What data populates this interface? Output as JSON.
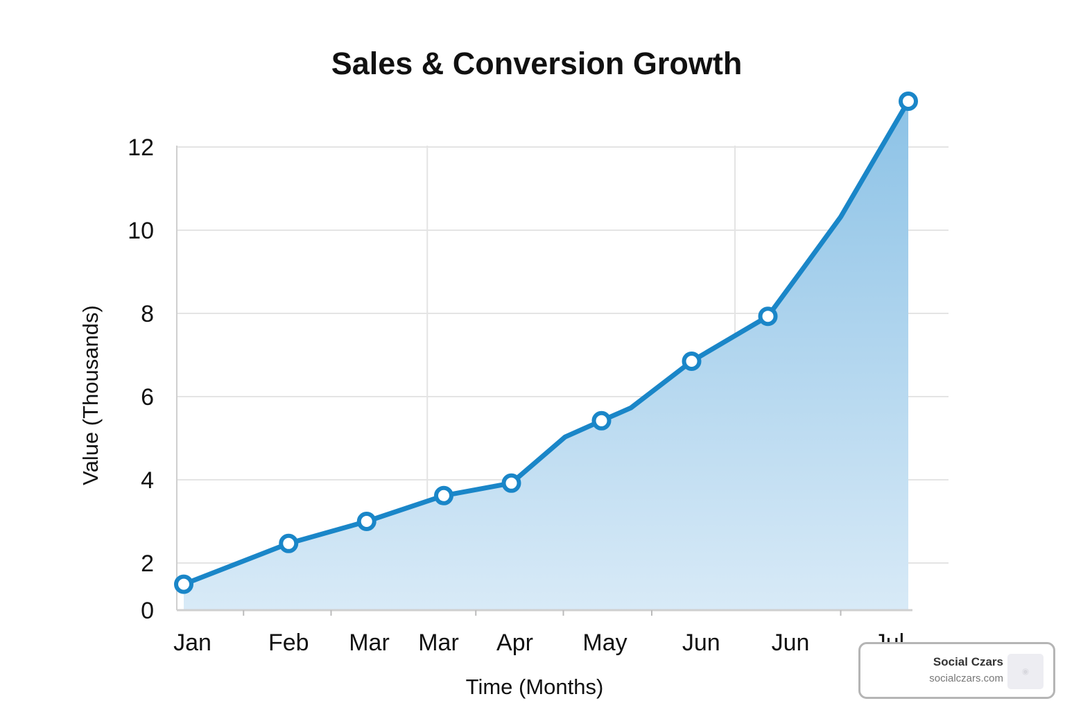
{
  "chart_data": {
    "type": "area",
    "title": "Sales & Conversion Growth",
    "xlabel": "Time (Months)",
    "ylabel": "Value (Thousands)",
    "ylim": [
      0,
      12
    ],
    "yticks": [
      0,
      2,
      4,
      6,
      8,
      10,
      12
    ],
    "grid": true,
    "x_tick_labels": [
      {
        "label": "Jan",
        "x": 0.1
      },
      {
        "label": "Feb",
        "x": 1.21
      },
      {
        "label": "Mar",
        "x": 2.14
      },
      {
        "label": "Mar",
        "x": 2.94
      },
      {
        "label": "Apr",
        "x": 3.82
      },
      {
        "label": "May",
        "x": 4.86
      },
      {
        "label": "Jun",
        "x": 5.97
      },
      {
        "label": "Jun",
        "x": 7.0
      },
      {
        "label": "Jul",
        "x": 8.14
      }
    ],
    "x_minor_ticks": [
      0.69,
      1.7,
      3.37,
      4.38,
      5.4,
      7.58
    ],
    "x_gridlines": [
      2.81,
      6.36
    ],
    "series": [
      {
        "name": "Value",
        "color": "#1a86c8",
        "points": [
          {
            "x": 0,
            "y": 1.1,
            "marker": true
          },
          {
            "x": 1.21,
            "y": 2.47,
            "marker": true
          },
          {
            "x": 2.11,
            "y": 3.0,
            "marker": true
          },
          {
            "x": 3.0,
            "y": 3.62,
            "marker": true
          },
          {
            "x": 3.78,
            "y": 3.92,
            "marker": true
          },
          {
            "x": 4.4,
            "y": 5.03,
            "marker": false
          },
          {
            "x": 4.82,
            "y": 5.42,
            "marker": true
          },
          {
            "x": 5.16,
            "y": 5.73,
            "marker": false
          },
          {
            "x": 5.86,
            "y": 6.85,
            "marker": true
          },
          {
            "x": 6.74,
            "y": 7.93,
            "marker": true
          },
          {
            "x": 7.16,
            "y": 9.12,
            "marker": false
          },
          {
            "x": 7.58,
            "y": 10.32,
            "marker": false
          },
          {
            "x": 8.36,
            "y": 13.1,
            "marker": true
          }
        ]
      }
    ]
  },
  "badge": {
    "name": "Social Czars",
    "url": "socialczars.com",
    "logo_icon": "social-czars-logo"
  }
}
